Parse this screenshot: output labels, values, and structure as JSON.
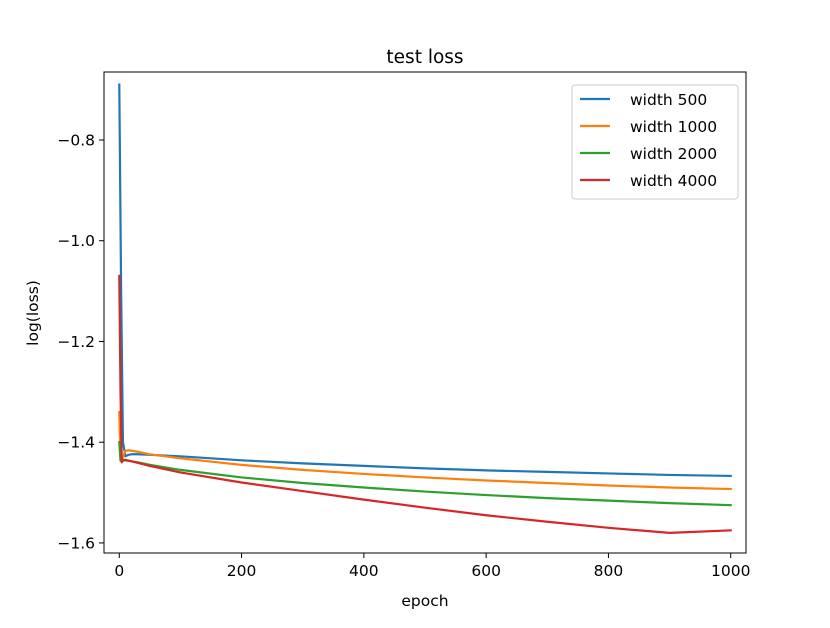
{
  "chart_data": {
    "type": "line",
    "title": "test loss",
    "xlabel": "epoch",
    "ylabel": "log(loss)",
    "xlim": [
      -25,
      1025
    ],
    "ylim": [
      -1.62,
      -0.665
    ],
    "xticks": [
      0,
      200,
      400,
      600,
      800,
      1000
    ],
    "xtick_labels": [
      "0",
      "200",
      "400",
      "600",
      "800",
      "1000"
    ],
    "yticks": [
      -1.6,
      -1.4,
      -1.2,
      -1.0,
      -0.8
    ],
    "ytick_labels": [
      "−1.6",
      "−1.4",
      "−1.2",
      "−1.0",
      "−0.8"
    ],
    "grid": false,
    "legend_position": "top-right",
    "series": [
      {
        "name": "width 500",
        "color": "#1f77b4",
        "x": [
          0,
          3,
          6,
          10,
          15,
          20,
          30,
          50,
          100,
          200,
          300,
          400,
          500,
          600,
          700,
          800,
          900,
          1000
        ],
        "y": [
          -0.69,
          -1.1,
          -1.4,
          -1.428,
          -1.425,
          -1.424,
          -1.424,
          -1.425,
          -1.428,
          -1.436,
          -1.442,
          -1.447,
          -1.452,
          -1.456,
          -1.459,
          -1.462,
          -1.465,
          -1.467
        ]
      },
      {
        "name": "width 1000",
        "color": "#ff7f0e",
        "x": [
          0,
          2,
          5,
          10,
          15,
          20,
          30,
          50,
          100,
          200,
          300,
          400,
          500,
          600,
          700,
          800,
          900,
          1000
        ],
        "y": [
          -1.34,
          -1.43,
          -1.432,
          -1.417,
          -1.416,
          -1.417,
          -1.419,
          -1.424,
          -1.432,
          -1.445,
          -1.455,
          -1.463,
          -1.47,
          -1.476,
          -1.481,
          -1.486,
          -1.49,
          -1.493
        ]
      },
      {
        "name": "width 2000",
        "color": "#2ca02c",
        "x": [
          0,
          2,
          5,
          10,
          20,
          30,
          50,
          100,
          200,
          300,
          400,
          500,
          600,
          700,
          800,
          900,
          1000
        ],
        "y": [
          -1.4,
          -1.437,
          -1.437,
          -1.436,
          -1.438,
          -1.44,
          -1.445,
          -1.455,
          -1.47,
          -1.481,
          -1.49,
          -1.498,
          -1.505,
          -1.511,
          -1.516,
          -1.521,
          -1.525
        ]
      },
      {
        "name": "width 4000",
        "color": "#d62728",
        "x": [
          0,
          2,
          4,
          6,
          10,
          20,
          30,
          50,
          100,
          200,
          300,
          400,
          500,
          600,
          700,
          800,
          900,
          1000
        ],
        "y": [
          -1.07,
          -1.3,
          -1.44,
          -1.435,
          -1.435,
          -1.438,
          -1.441,
          -1.447,
          -1.46,
          -1.48,
          -1.497,
          -1.514,
          -1.53,
          -1.545,
          -1.558,
          -1.57,
          -1.58,
          -1.575
        ]
      }
    ]
  }
}
